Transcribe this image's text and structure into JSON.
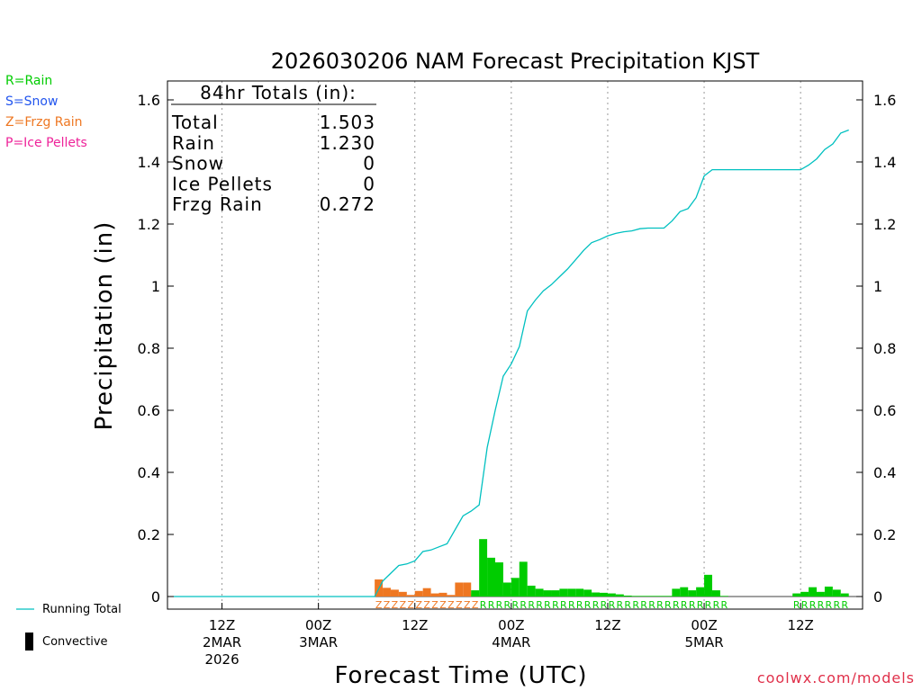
{
  "colors": {
    "rain": "#00cc00",
    "snow": "#2255ee",
    "frzg_rain": "#ee7722",
    "ice_pellets": "#ee2299",
    "running_total": "#00c0c0",
    "credit": "#e0304a"
  },
  "ptype_legend": {
    "rain": "R=Rain",
    "snow": "S=Snow",
    "frzg_rain": "Z=Frzg Rain",
    "ice_pellets": "P=Ice Pellets"
  },
  "key": {
    "running_total": "Running Total",
    "convective": "Convective"
  },
  "credit": "coolwx.com/models",
  "chart_data": {
    "type": "bar",
    "title": "2026030206 NAM Forecast Precipitation KJST",
    "xlabel": "Forecast Time (UTC)",
    "ylabel": "Precipitation (in)",
    "ylim": [
      0,
      1.65
    ],
    "xlim_hours_from_init": [
      0,
      84
    ],
    "y_ticks": [
      0,
      0.2,
      0.4,
      0.6,
      0.8,
      1,
      1.2,
      1.4,
      1.6
    ],
    "y_tick_labels": [
      "0",
      "0.2",
      "0.4",
      "0.6",
      "0.8",
      "1",
      "1.2",
      "1.4",
      "1.6"
    ],
    "x_ticks": [
      {
        "hour": 6,
        "lines": [
          "12Z",
          "2MAR",
          "2026"
        ]
      },
      {
        "hour": 18,
        "lines": [
          "00Z",
          "3MAR"
        ]
      },
      {
        "hour": 30,
        "lines": [
          "12Z"
        ]
      },
      {
        "hour": 42,
        "lines": [
          "00Z",
          "4MAR"
        ]
      },
      {
        "hour": 54,
        "lines": [
          "12Z"
        ]
      },
      {
        "hour": 66,
        "lines": [
          "00Z",
          "5MAR"
        ]
      },
      {
        "hour": 78,
        "lines": [
          "12Z"
        ]
      }
    ],
    "totals_box": {
      "header": "84hr Totals (in):",
      "rows": [
        {
          "label": "Total",
          "value": "1.503"
        },
        {
          "label": "Rain",
          "value": "1.230"
        },
        {
          "label": "Snow",
          "value": "0"
        },
        {
          "label": "Ice Pellets",
          "value": "0"
        },
        {
          "label": "Frzg Rain",
          "value": "0.272"
        }
      ]
    },
    "series": [
      {
        "name": "Frzg Rain",
        "marker": "Z",
        "hours": [
          26,
          27,
          28,
          29,
          30,
          31,
          32,
          33,
          34,
          35,
          36,
          37,
          38
        ],
        "values": [
          0.055,
          0.028,
          0.022,
          0.015,
          0.005,
          0.018,
          0.027,
          0.01,
          0.012,
          0.005,
          0.045,
          0.045,
          0.01
        ]
      },
      {
        "name": "Rain",
        "marker": "R",
        "hours": [
          38,
          39,
          40,
          41,
          42,
          43,
          44,
          45,
          46,
          47,
          48,
          49,
          50,
          51,
          52,
          53,
          54,
          55,
          56,
          57,
          58,
          59,
          60,
          61,
          62,
          63,
          64,
          65,
          66,
          67,
          68,
          69,
          78,
          79,
          80,
          81,
          82,
          83,
          84
        ],
        "values": [
          0.02,
          0.185,
          0.125,
          0.11,
          0.045,
          0.06,
          0.112,
          0.035,
          0.025,
          0.02,
          0.02,
          0.025,
          0.025,
          0.025,
          0.022,
          0.013,
          0.012,
          0.01,
          0.007,
          0.003,
          0.002,
          0.002,
          0.002,
          0.002,
          0.002,
          0.025,
          0.03,
          0.02,
          0.03,
          0.07,
          0.02,
          0.002,
          0.01,
          0.015,
          0.03,
          0.015,
          0.032,
          0.022,
          0.01
        ]
      },
      {
        "name": "Running Total",
        "hours": [
          0,
          25,
          26,
          27,
          28,
          29,
          30,
          31,
          32,
          33,
          34,
          35,
          36,
          37,
          38,
          39,
          40,
          41,
          42,
          43,
          44,
          45,
          46,
          47,
          48,
          49,
          50,
          51,
          52,
          53,
          54,
          55,
          56,
          57,
          58,
          59,
          60,
          61,
          62,
          63,
          64,
          65,
          66,
          67,
          68,
          69,
          70,
          71,
          72,
          73,
          74,
          75,
          76,
          77,
          78,
          79,
          80,
          81,
          82,
          83,
          84
        ],
        "values": [
          0,
          0,
          0.05,
          0.075,
          0.1,
          0.105,
          0.115,
          0.145,
          0.15,
          0.16,
          0.17,
          0.215,
          0.26,
          0.275,
          0.295,
          0.48,
          0.6,
          0.71,
          0.75,
          0.805,
          0.92,
          0.955,
          0.985,
          1.005,
          1.03,
          1.055,
          1.085,
          1.115,
          1.14,
          1.15,
          1.162,
          1.17,
          1.175,
          1.178,
          1.185,
          1.187,
          1.187,
          1.187,
          1.21,
          1.24,
          1.25,
          1.285,
          1.355,
          1.375,
          1.375,
          1.375,
          1.375,
          1.375,
          1.375,
          1.375,
          1.375,
          1.375,
          1.375,
          1.375,
          1.375,
          1.39,
          1.41,
          1.44,
          1.458,
          1.493,
          1.503
        ]
      }
    ]
  }
}
